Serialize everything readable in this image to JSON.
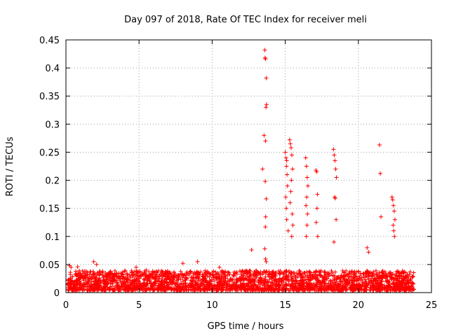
{
  "chart_data": {
    "type": "scatter",
    "title": "Day 097 of 2018, Rate Of TEC Index for receiver meli",
    "xlabel": "GPS time / hours",
    "ylabel": "ROTI / TECUs",
    "xlim": [
      0,
      25
    ],
    "ylim": [
      0,
      0.45
    ],
    "xticks": [
      0,
      5,
      10,
      15,
      20,
      25
    ],
    "yticks": [
      0,
      0.05,
      0.1,
      0.15,
      0.2,
      0.25,
      0.3,
      0.35,
      0.4,
      0.45
    ],
    "xtick_labels": [
      "0",
      "5",
      "10",
      "15",
      "20",
      "25"
    ],
    "ytick_labels": [
      "0",
      "0.05",
      "0.1",
      "0.15",
      "0.2",
      "0.25",
      "0.3",
      "0.35",
      "0.4",
      "0.45"
    ],
    "grid": true,
    "marker": "plus",
    "series": [
      {
        "name": "ROTI",
        "color": "#ff0000",
        "x": [
          0.25,
          0.35,
          0.8,
          1.9,
          2.1,
          4.8,
          5.5,
          8.0,
          9.0,
          10.5,
          12.7,
          13.45,
          13.55,
          13.6,
          13.62,
          13.65,
          13.7,
          13.72,
          13.68,
          13.65,
          13.63,
          13.7,
          13.66,
          13.64,
          13.6,
          13.65,
          13.7,
          15.0,
          15.05,
          15.1,
          15.08,
          15.12,
          15.15,
          15.03,
          15.07,
          15.1,
          15.2,
          15.3,
          15.35,
          15.4,
          15.45,
          15.5,
          15.42,
          15.38,
          15.33,
          15.48,
          15.52,
          15.44,
          16.4,
          16.45,
          16.5,
          16.55,
          16.47,
          16.42,
          16.52,
          16.49,
          16.44,
          17.1,
          17.15,
          17.2,
          17.17,
          17.12,
          17.22,
          18.3,
          18.35,
          18.4,
          18.45,
          18.5,
          18.38,
          18.42,
          18.48,
          18.33,
          20.6,
          20.7,
          21.45,
          21.5,
          21.55,
          22.3,
          22.35,
          22.4,
          22.45,
          22.5,
          22.38,
          22.42,
          22.47
        ],
        "y": [
          0.048,
          0.045,
          0.046,
          0.055,
          0.05,
          0.045,
          0.04,
          0.052,
          0.055,
          0.045,
          0.076,
          0.22,
          0.28,
          0.432,
          0.418,
          0.416,
          0.382,
          0.335,
          0.33,
          0.27,
          0.198,
          0.167,
          0.135,
          0.117,
          0.078,
          0.06,
          0.055,
          0.25,
          0.24,
          0.235,
          0.225,
          0.21,
          0.19,
          0.17,
          0.15,
          0.13,
          0.11,
          0.272,
          0.265,
          0.258,
          0.245,
          0.22,
          0.2,
          0.18,
          0.16,
          0.14,
          0.12,
          0.1,
          0.24,
          0.225,
          0.205,
          0.19,
          0.17,
          0.155,
          0.14,
          0.12,
          0.1,
          0.218,
          0.215,
          0.175,
          0.15,
          0.125,
          0.1,
          0.255,
          0.245,
          0.235,
          0.22,
          0.205,
          0.17,
          0.168,
          0.13,
          0.09,
          0.08,
          0.072,
          0.263,
          0.212,
          0.135,
          0.17,
          0.165,
          0.155,
          0.145,
          0.13,
          0.12,
          0.11,
          0.1
        ]
      }
    ],
    "background_band": {
      "x_range": [
        0,
        23.8
      ],
      "y_typical_max": 0.035,
      "description_values": "dense baseline noise between 0.005 and 0.035"
    }
  }
}
